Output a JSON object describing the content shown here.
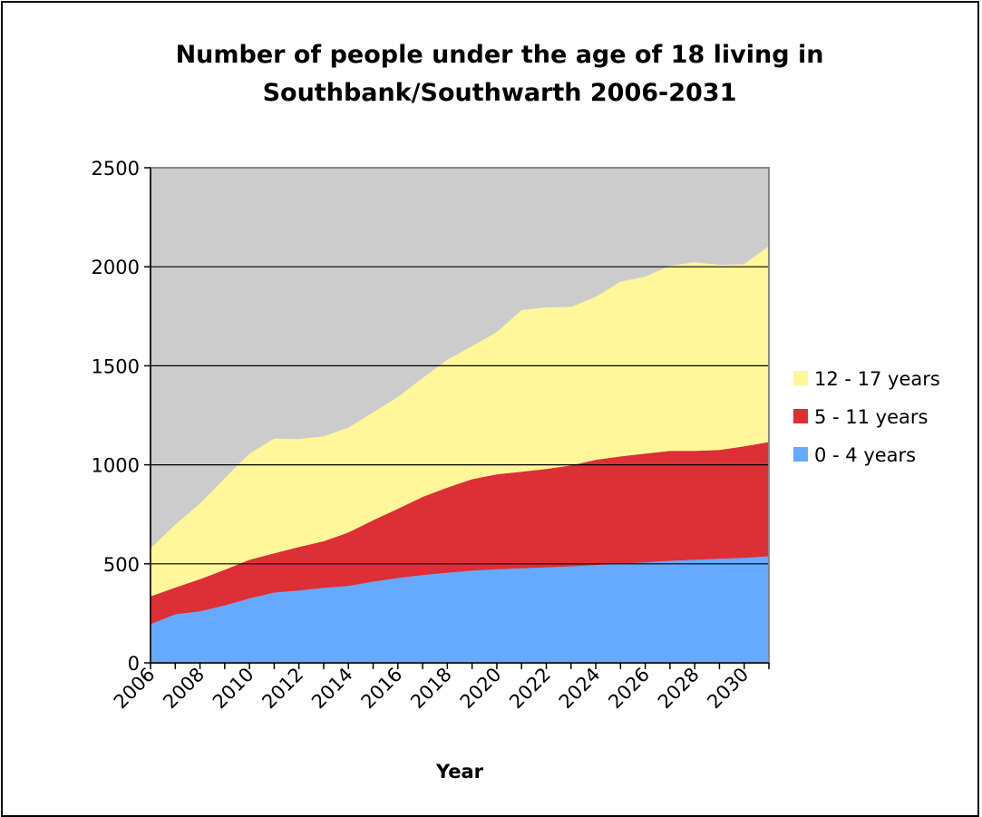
{
  "chart_data": {
    "type": "area",
    "stacked": true,
    "title": [
      "Number of people under the age of 18 living in",
      "Southbank/Southwarth 2006-2031"
    ],
    "xlabel": "Year",
    "ylabel": "",
    "ylim": [
      0,
      2500
    ],
    "yticks": [
      0,
      500,
      1000,
      1500,
      2000,
      2500
    ],
    "x": [
      2006,
      2007,
      2008,
      2009,
      2010,
      2011,
      2012,
      2013,
      2014,
      2015,
      2016,
      2017,
      2018,
      2019,
      2020,
      2021,
      2022,
      2023,
      2024,
      2025,
      2026,
      2027,
      2028,
      2029,
      2030,
      2031
    ],
    "xtick_labels": [
      "2006",
      "2008",
      "2010",
      "2012",
      "2014",
      "2016",
      "2018",
      "2020",
      "2022",
      "2024",
      "2026",
      "2028",
      "2030"
    ],
    "grid": "horizontal",
    "legend_position": "right",
    "background": "#cccccc",
    "series": [
      {
        "name": "0 - 4 years",
        "color": "#66aaff",
        "values": [
          195,
          245,
          260,
          290,
          325,
          355,
          365,
          378,
          388,
          410,
          428,
          443,
          455,
          465,
          472,
          477,
          482,
          487,
          493,
          500,
          507,
          515,
          520,
          525,
          530,
          538
        ]
      },
      {
        "name": "5 - 11 years",
        "color": "#dd2f36",
        "values": [
          140,
          135,
          162,
          180,
          195,
          198,
          220,
          236,
          270,
          310,
          350,
          395,
          430,
          462,
          480,
          488,
          497,
          510,
          532,
          542,
          550,
          555,
          550,
          550,
          563,
          577
        ]
      },
      {
        "name": "12 - 17 years",
        "color": "#fff799",
        "values": [
          243,
          318,
          383,
          462,
          537,
          580,
          545,
          530,
          530,
          545,
          565,
          600,
          645,
          672,
          718,
          816,
          816,
          800,
          823,
          883,
          893,
          935,
          953,
          935,
          920,
          990
        ]
      }
    ]
  }
}
